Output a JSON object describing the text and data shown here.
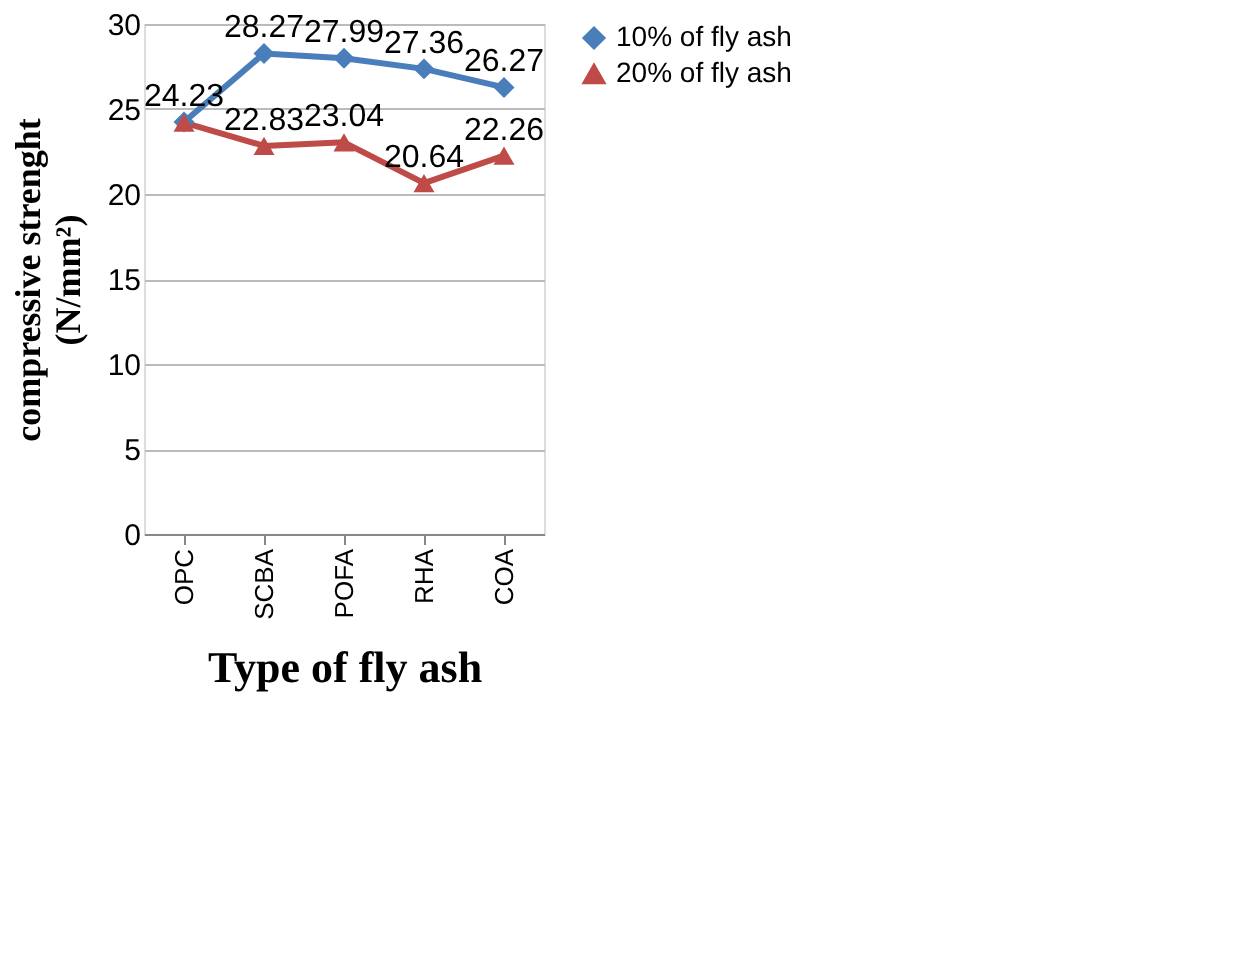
{
  "chart_data": {
    "type": "line",
    "xlabel": "Type of fly ash",
    "ylabel": "compressive strenght\n(N/mm²)",
    "categories": [
      "OPC",
      "SCBA",
      "POFA",
      "RHA",
      "COA"
    ],
    "series": [
      {
        "name": "10% of fly ash",
        "color": "#4a7ebb",
        "marker": "diamond",
        "values": [
          24.23,
          28.27,
          27.99,
          27.36,
          26.27
        ],
        "value_labels": [
          "24.23",
          "28.27",
          "27.99",
          "27.36",
          "26.27"
        ]
      },
      {
        "name": "20% of fly ash",
        "color": "#be4b48",
        "marker": "triangle",
        "values": [
          24.2,
          22.83,
          23.04,
          20.64,
          22.26
        ],
        "value_labels": [
          null,
          "22.83",
          "23.04",
          "20.64",
          "22.26"
        ]
      }
    ],
    "ylim": [
      0,
      30
    ],
    "yticks": [
      0,
      5,
      10,
      15,
      20,
      25,
      30
    ],
    "grid": "y",
    "legend": "right"
  }
}
